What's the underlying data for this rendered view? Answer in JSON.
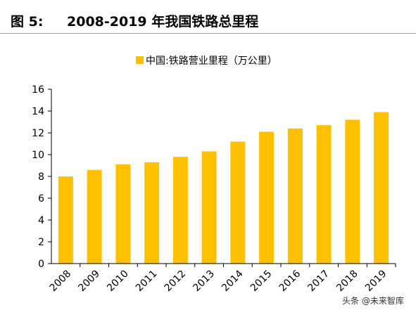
{
  "figure": {
    "label": "图 5:",
    "title": "2008-2019 年我国铁路总里程"
  },
  "watermark": "头条 @未来智库",
  "chart_data": {
    "type": "bar",
    "categories": [
      "2008",
      "2009",
      "2010",
      "2011",
      "2012",
      "2013",
      "2014",
      "2015",
      "2016",
      "2017",
      "2018",
      "2019"
    ],
    "series": [
      {
        "name": "中国:铁路营业里程（万公里）",
        "values": [
          8.0,
          8.6,
          9.1,
          9.3,
          9.8,
          10.3,
          11.2,
          12.1,
          12.4,
          12.7,
          13.2,
          13.9
        ],
        "color": "#FFC000"
      }
    ],
    "yticks": [
      0,
      2,
      4,
      6,
      8,
      10,
      12,
      14,
      16
    ],
    "ylim": [
      0,
      16
    ],
    "grid": false,
    "legend": "top-center"
  }
}
